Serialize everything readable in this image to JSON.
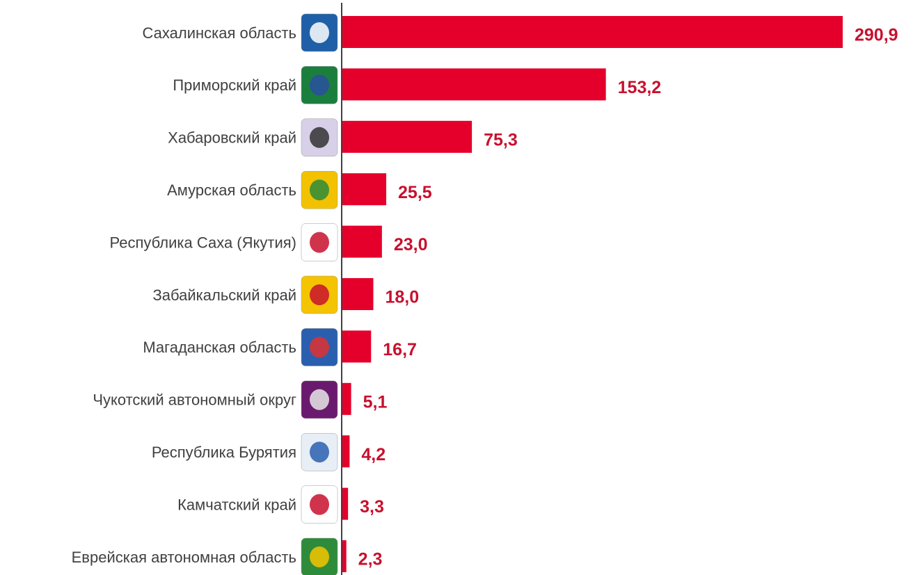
{
  "chart_data": {
    "type": "bar",
    "orientation": "horizontal",
    "categories": [
      "Сахалинская область",
      "Приморский край",
      "Хабаровский край",
      "Амурская область",
      "Республика Саха (Якутия)",
      "Забайкальский край",
      "Магаданская область",
      "Чукотский автономный округ",
      "Республика Бурятия",
      "Камчатский край",
      "Еврейская автономная область"
    ],
    "values": [
      290.9,
      153.2,
      75.3,
      25.5,
      23.0,
      18.0,
      16.7,
      5.1,
      4.2,
      3.3,
      2.3
    ],
    "value_labels": [
      "290,9",
      "153,2",
      "75,3",
      "25,5",
      "23,0",
      "18,0",
      "16,7",
      "5,1",
      "4,2",
      "3,3",
      "2,3"
    ],
    "color": "#e4002b"
  }
}
